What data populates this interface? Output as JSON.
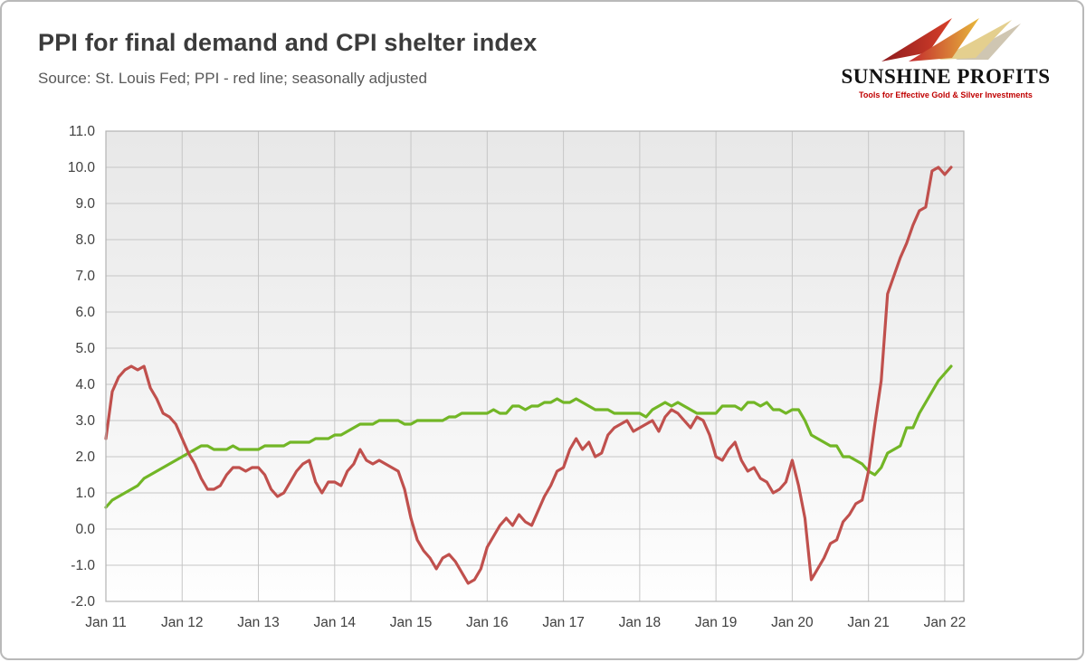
{
  "header": {
    "title": "PPI for final demand and CPI shelter index",
    "subtitle": "Source: St. Louis Fed; PPI - red line; seasonally adjusted"
  },
  "logo": {
    "name": "SUNSHINE PROFITS",
    "tagline": "Tools for Effective Gold & Silver Investments"
  },
  "chart_data": {
    "type": "line",
    "title": "PPI for final demand and CPI shelter index",
    "x_start": "Jan 2011",
    "frequency": "monthly",
    "x_tick_labels": [
      "Jan 11",
      "Jan 12",
      "Jan 13",
      "Jan 14",
      "Jan 15",
      "Jan 16",
      "Jan 17",
      "Jan 18",
      "Jan 19",
      "Jan 20",
      "Jan 21",
      "Jan 22"
    ],
    "ylim": [
      -2.0,
      11.0
    ],
    "ytick_step": 1.0,
    "x_domain_months": 135,
    "grid": true,
    "legend_position": "none",
    "plot_bg_top": "#e8e8e8",
    "plot_bg_bottom": "#fefefe",
    "series": [
      {
        "name": "CPI shelter index (YoY %)",
        "color": "#72b626",
        "values": [
          0.6,
          0.8,
          0.9,
          1.0,
          1.1,
          1.2,
          1.4,
          1.5,
          1.6,
          1.7,
          1.8,
          1.9,
          2.0,
          2.1,
          2.2,
          2.3,
          2.3,
          2.2,
          2.2,
          2.2,
          2.3,
          2.2,
          2.2,
          2.2,
          2.2,
          2.3,
          2.3,
          2.3,
          2.3,
          2.4,
          2.4,
          2.4,
          2.4,
          2.5,
          2.5,
          2.5,
          2.6,
          2.6,
          2.7,
          2.8,
          2.9,
          2.9,
          2.9,
          3.0,
          3.0,
          3.0,
          3.0,
          2.9,
          2.9,
          3.0,
          3.0,
          3.0,
          3.0,
          3.0,
          3.1,
          3.1,
          3.2,
          3.2,
          3.2,
          3.2,
          3.2,
          3.3,
          3.2,
          3.2,
          3.4,
          3.4,
          3.3,
          3.4,
          3.4,
          3.5,
          3.5,
          3.6,
          3.5,
          3.5,
          3.6,
          3.5,
          3.4,
          3.3,
          3.3,
          3.3,
          3.2,
          3.2,
          3.2,
          3.2,
          3.2,
          3.1,
          3.3,
          3.4,
          3.5,
          3.4,
          3.5,
          3.4,
          3.3,
          3.2,
          3.2,
          3.2,
          3.2,
          3.4,
          3.4,
          3.4,
          3.3,
          3.5,
          3.5,
          3.4,
          3.5,
          3.3,
          3.3,
          3.2,
          3.3,
          3.3,
          3.0,
          2.6,
          2.5,
          2.4,
          2.3,
          2.3,
          2.0,
          2.0,
          1.9,
          1.8,
          1.6,
          1.5,
          1.7,
          2.1,
          2.2,
          2.3,
          2.8,
          2.8,
          3.2,
          3.5,
          3.8,
          4.1,
          4.3,
          4.5
        ]
      },
      {
        "name": "PPI for final demand (YoY %)",
        "color": "#c0504d",
        "values": [
          2.5,
          3.8,
          4.2,
          4.4,
          4.5,
          4.4,
          4.5,
          3.9,
          3.6,
          3.2,
          3.1,
          2.9,
          2.5,
          2.1,
          1.8,
          1.4,
          1.1,
          1.1,
          1.2,
          1.5,
          1.7,
          1.7,
          1.6,
          1.7,
          1.7,
          1.5,
          1.1,
          0.9,
          1.0,
          1.3,
          1.6,
          1.8,
          1.9,
          1.3,
          1.0,
          1.3,
          1.3,
          1.2,
          1.6,
          1.8,
          2.2,
          1.9,
          1.8,
          1.9,
          1.8,
          1.7,
          1.6,
          1.1,
          0.3,
          -0.3,
          -0.6,
          -0.8,
          -1.1,
          -0.8,
          -0.7,
          -0.9,
          -1.2,
          -1.5,
          -1.4,
          -1.1,
          -0.5,
          -0.2,
          0.1,
          0.3,
          0.1,
          0.4,
          0.2,
          0.1,
          0.5,
          0.9,
          1.2,
          1.6,
          1.7,
          2.2,
          2.5,
          2.2,
          2.4,
          2.0,
          2.1,
          2.6,
          2.8,
          2.9,
          3.0,
          2.7,
          2.8,
          2.9,
          3.0,
          2.7,
          3.1,
          3.3,
          3.2,
          3.0,
          2.8,
          3.1,
          3.0,
          2.6,
          2.0,
          1.9,
          2.2,
          2.4,
          1.9,
          1.6,
          1.7,
          1.4,
          1.3,
          1.0,
          1.1,
          1.3,
          1.9,
          1.2,
          0.3,
          -1.4,
          -1.1,
          -0.8,
          -0.4,
          -0.3,
          0.2,
          0.4,
          0.7,
          0.8,
          1.6,
          2.9,
          4.1,
          6.5,
          7.0,
          7.5,
          7.9,
          8.4,
          8.8,
          8.9,
          9.9,
          10.0,
          9.8,
          10.0
        ]
      }
    ]
  }
}
